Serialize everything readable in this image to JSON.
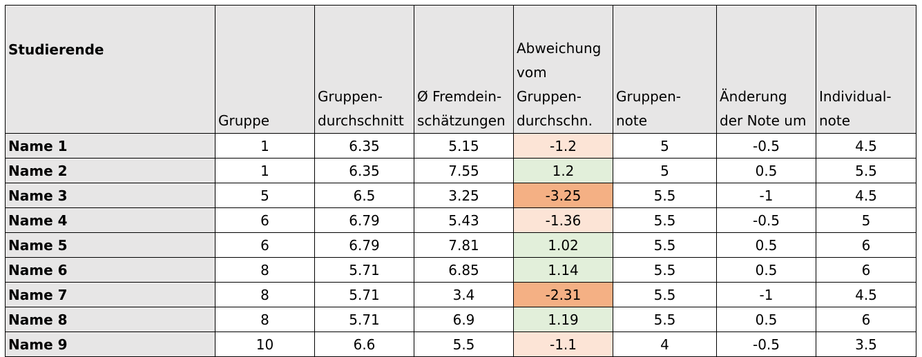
{
  "headers": {
    "studierende": "Studierende",
    "gruppe": "Gruppe",
    "gruppendurchschnitt": [
      "Gruppen-",
      "durchschnitt"
    ],
    "fremdeinschaetzungen": [
      "Ø Fremdein-",
      "schätzungen"
    ],
    "abweichung": [
      "Abweichung",
      "vom",
      "Gruppen-",
      "durchschn."
    ],
    "gruppennote": [
      "Gruppen-",
      "note"
    ],
    "aenderung": [
      "Änderung",
      "der Note um"
    ],
    "individualnote": [
      "Individual-",
      "note"
    ]
  },
  "colors": {
    "header_bg": "#e7e6e6",
    "negative_small": "#fce4d6",
    "negative_large": "#f4b084",
    "positive": "#e2efda"
  },
  "rows": [
    {
      "name": "Name 1",
      "gruppe": "1",
      "durchschnitt": "6.35",
      "fremd": "5.15",
      "abweichung": "-1.2",
      "gruppennote": "5",
      "aenderung": "-0.5",
      "individual": "4.5"
    },
    {
      "name": "Name 2",
      "gruppe": "1",
      "durchschnitt": "6.35",
      "fremd": "7.55",
      "abweichung": "1.2",
      "gruppennote": "5",
      "aenderung": "0.5",
      "individual": "5.5"
    },
    {
      "name": "Name 3",
      "gruppe": "5",
      "durchschnitt": "6.5",
      "fremd": "3.25",
      "abweichung": "-3.25",
      "gruppennote": "5.5",
      "aenderung": "-1",
      "individual": "4.5"
    },
    {
      "name": "Name 4",
      "gruppe": "6",
      "durchschnitt": "6.79",
      "fremd": "5.43",
      "abweichung": "-1.36",
      "gruppennote": "5.5",
      "aenderung": "-0.5",
      "individual": "5"
    },
    {
      "name": "Name 5",
      "gruppe": "6",
      "durchschnitt": "6.79",
      "fremd": "7.81",
      "abweichung": "1.02",
      "gruppennote": "5.5",
      "aenderung": "0.5",
      "individual": "6"
    },
    {
      "name": "Name 6",
      "gruppe": "8",
      "durchschnitt": "5.71",
      "fremd": "6.85",
      "abweichung": "1.14",
      "gruppennote": "5.5",
      "aenderung": "0.5",
      "individual": "6"
    },
    {
      "name": "Name 7",
      "gruppe": "8",
      "durchschnitt": "5.71",
      "fremd": "3.4",
      "abweichung": "-2.31",
      "gruppennote": "5.5",
      "aenderung": "-1",
      "individual": "4.5"
    },
    {
      "name": "Name 8",
      "gruppe": "8",
      "durchschnitt": "5.71",
      "fremd": "6.9",
      "abweichung": "1.19",
      "gruppennote": "5.5",
      "aenderung": "0.5",
      "individual": "6"
    },
    {
      "name": "Name 9",
      "gruppe": "10",
      "durchschnitt": "6.6",
      "fremd": "5.5",
      "abweichung": "-1.1",
      "gruppennote": "4",
      "aenderung": "-0.5",
      "individual": "3.5"
    }
  ]
}
